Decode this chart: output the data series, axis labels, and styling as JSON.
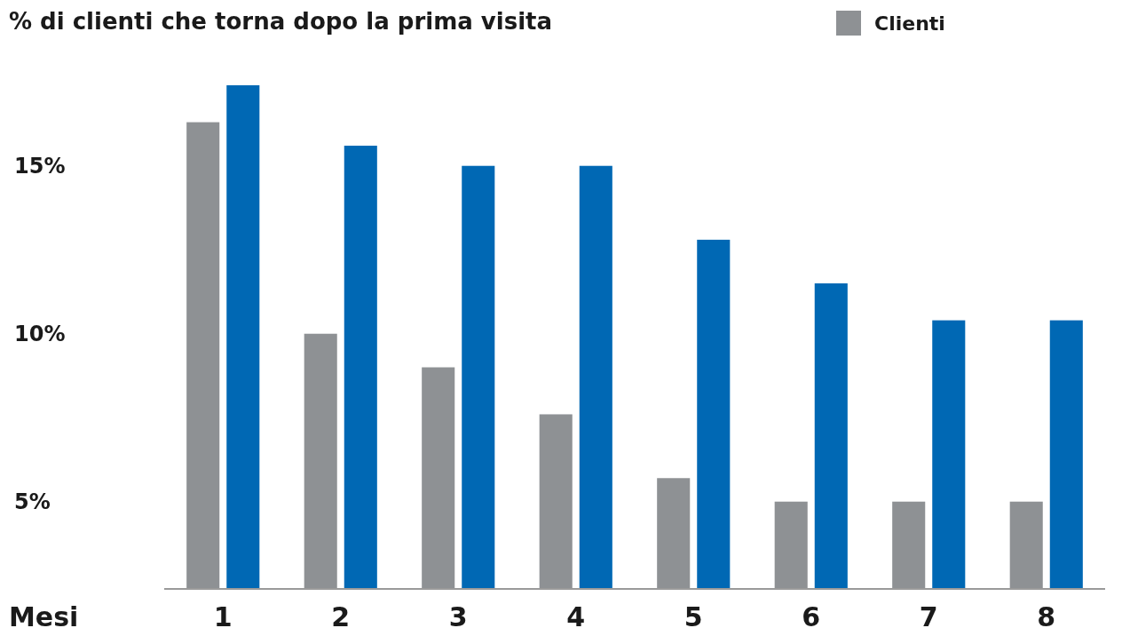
{
  "chart_data": {
    "type": "bar",
    "title": "% di clienti che torna dopo la prima visita",
    "xlabel": "Mesi",
    "categories": [
      "1",
      "2",
      "3",
      "4",
      "5",
      "6",
      "7",
      "8"
    ],
    "series": [
      {
        "name": "Clienti",
        "color": "#8e9194",
        "values": [
          16.3,
          10,
          9,
          7.6,
          5.7,
          5,
          5,
          5
        ]
      },
      {
        "color": "#0068b4",
        "values": [
          17.4,
          15.6,
          15,
          15,
          12.8,
          11.5,
          10.4,
          10.4
        ]
      }
    ],
    "ylim": [
      2.4,
      17.4
    ],
    "yticks": [
      {
        "value": 5,
        "label": "5%"
      },
      {
        "value": 10,
        "label": "10%"
      },
      {
        "value": 15,
        "label": "15%"
      }
    ],
    "grid": false,
    "legend": "top right"
  }
}
